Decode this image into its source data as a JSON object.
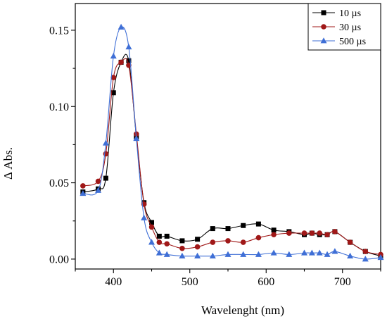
{
  "chart_data": {
    "type": "line",
    "xlabel": "Wavelenght (nm)",
    "ylabel": "Δ Abs.",
    "xlim": [
      350,
      750
    ],
    "ylim": [
      -0.0065,
      0.1675
    ],
    "x_ticks": [
      400,
      500,
      600,
      700
    ],
    "x_tick_labels": [
      "400",
      "500",
      "600",
      "700"
    ],
    "y_ticks": [
      0.0,
      0.05,
      0.1,
      0.15
    ],
    "y_tick_labels": [
      "0.00",
      "0.05",
      "0.10",
      "0.15"
    ],
    "grid": false,
    "legend_position": "top-right",
    "series": [
      {
        "name": "10  µs",
        "color": "#000000",
        "marker": "square",
        "x": [
          360,
          380,
          390,
          400,
          410,
          420,
          430,
          440,
          450,
          460,
          470,
          490,
          510,
          530,
          550,
          570,
          590,
          610,
          630,
          650,
          660,
          670,
          680,
          690,
          710,
          730,
          750
        ],
        "y": [
          0.044,
          0.046,
          0.053,
          0.109,
          0.129,
          0.13,
          0.08,
          0.037,
          0.024,
          0.015,
          0.015,
          0.012,
          0.013,
          0.02,
          0.02,
          0.022,
          0.023,
          0.019,
          0.018,
          0.016,
          0.017,
          0.016,
          0.016,
          0.018,
          0.011,
          0.005,
          0.002
        ]
      },
      {
        "name": "30  µs",
        "color": "#a01818",
        "marker": "circle",
        "x": [
          360,
          380,
          390,
          400,
          410,
          420,
          430,
          440,
          450,
          460,
          470,
          490,
          510,
          530,
          550,
          570,
          590,
          610,
          630,
          650,
          660,
          670,
          680,
          690,
          710,
          730,
          750
        ],
        "y": [
          0.048,
          0.051,
          0.069,
          0.119,
          0.129,
          0.127,
          0.082,
          0.036,
          0.021,
          0.011,
          0.01,
          0.007,
          0.008,
          0.011,
          0.012,
          0.011,
          0.014,
          0.016,
          0.017,
          0.017,
          0.017,
          0.017,
          0.016,
          0.018,
          0.011,
          0.005,
          0.003
        ]
      },
      {
        "name": "500 µs",
        "color": "#3f6fd6",
        "marker": "triangle",
        "x": [
          360,
          380,
          390,
          400,
          410,
          420,
          430,
          440,
          450,
          460,
          470,
          490,
          510,
          530,
          550,
          570,
          590,
          610,
          630,
          650,
          660,
          670,
          680,
          690,
          710,
          730,
          750
        ],
        "y": [
          0.043,
          0.045,
          0.076,
          0.133,
          0.152,
          0.139,
          0.079,
          0.027,
          0.011,
          0.004,
          0.003,
          0.002,
          0.002,
          0.002,
          0.003,
          0.003,
          0.003,
          0.004,
          0.003,
          0.004,
          0.004,
          0.004,
          0.003,
          0.005,
          0.002,
          0.0,
          0.001
        ]
      }
    ]
  }
}
